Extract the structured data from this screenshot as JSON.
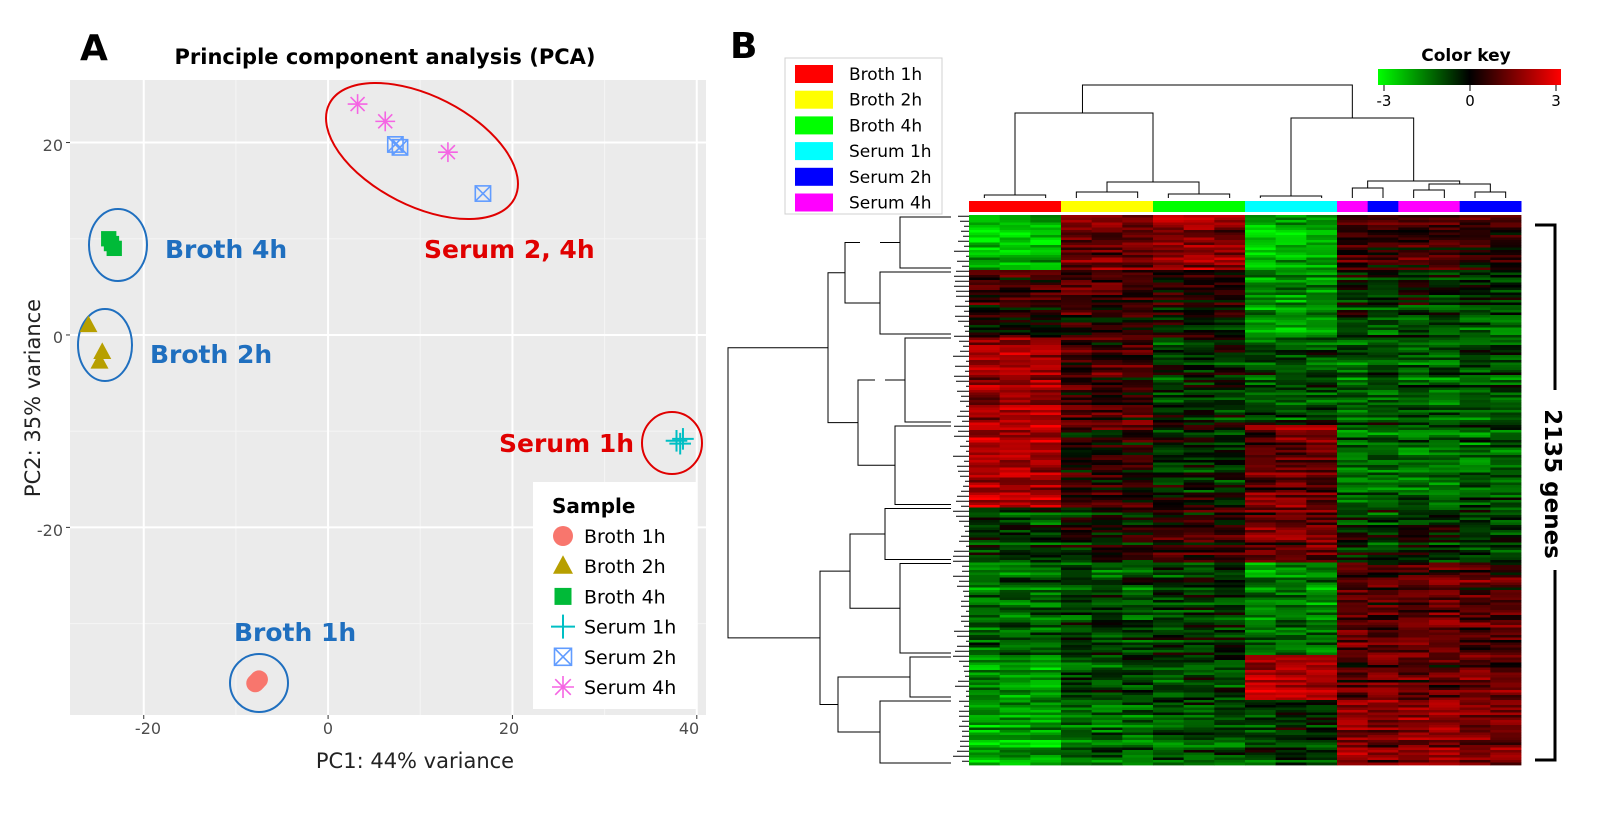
{
  "panel_a": {
    "letter": "A",
    "title": "Principle component analysis (PCA)",
    "xlabel": "PC1: 44% variance",
    "ylabel": "PC2: 35% variance",
    "x_ticks": [
      "-20",
      "0",
      "20",
      "40"
    ],
    "y_ticks": [
      "20",
      "0",
      "-20"
    ],
    "legend_title": "Sample",
    "annotations": {
      "broth4h": "Broth 4h",
      "broth2h": "Broth 2h",
      "broth1h": "Broth 1h",
      "serum1h": "Serum 1h",
      "serum24h": "Serum 2, 4h"
    }
  },
  "panel_b": {
    "letter": "B",
    "legend": [
      "Broth 1h",
      "Broth 2h",
      "Broth 4h",
      "Serum 1h",
      "Serum 2h",
      "Serum 4h"
    ],
    "color_key_title": "Color key",
    "color_key_ticks": [
      "-3",
      "0",
      "3"
    ],
    "gene_count_label": "2135 genes"
  },
  "colors": {
    "broth_1h": "#f8766d",
    "broth_2h": "#b79f00",
    "broth_4h": "#00ba38",
    "serum_1h": "#00bfc4",
    "serum_2h": "#619cff",
    "serum_4h": "#f564e3",
    "annot_blue": "#1f6fbf",
    "annot_red": "#e00000",
    "heat_low": "#00ff00",
    "heat_mid": "#000000",
    "heat_high": "#ff0000"
  },
  "chart_data": [
    {
      "type": "scatter",
      "title": "Principle component analysis (PCA)",
      "xlabel": "PC1: 44% variance",
      "ylabel": "PC2: 35% variance",
      "xlim": [
        -28,
        41
      ],
      "ylim": [
        -39.5,
        26.5
      ],
      "grid": true,
      "legend_placement": "bottom-right",
      "series": [
        {
          "name": "Broth 1h",
          "marker": "circle",
          "color": "#f8766d",
          "points": [
            [
              -7.7,
              -36.0
            ],
            [
              -7.5,
              -35.8
            ],
            [
              -7.9,
              -36.2
            ]
          ]
        },
        {
          "name": "Broth 2h",
          "marker": "triangle",
          "color": "#b79f00",
          "points": [
            [
              -26.0,
              1.0
            ],
            [
              -24.5,
              -1.8
            ],
            [
              -24.8,
              -2.8
            ]
          ]
        },
        {
          "name": "Broth 4h",
          "marker": "square",
          "color": "#00ba38",
          "points": [
            [
              -23.8,
              10.0
            ],
            [
              -23.2,
              9.0
            ],
            [
              -23.5,
              9.5
            ]
          ]
        },
        {
          "name": "Serum 1h",
          "marker": "plus",
          "color": "#00bfc4",
          "points": [
            [
              37.8,
              -11.0
            ],
            [
              38.5,
              -10.8
            ],
            [
              38.2,
              -11.3
            ]
          ]
        },
        {
          "name": "Serum 2h",
          "marker": "square-x",
          "color": "#619cff",
          "points": [
            [
              7.3,
              19.8
            ],
            [
              7.8,
              19.5
            ],
            [
              16.8,
              14.7
            ]
          ]
        },
        {
          "name": "Serum 4h",
          "marker": "asterisk",
          "color": "#f564e3",
          "points": [
            [
              3.2,
              24.0
            ],
            [
              6.2,
              22.2
            ],
            [
              13.0,
              19.0
            ]
          ]
        }
      ]
    },
    {
      "type": "heatmap",
      "color_scale": {
        "min": -3,
        "mid": 0,
        "max": 3,
        "low_color": "#00ff00",
        "mid_color": "#000000",
        "high_color": "#ff0000"
      },
      "genes": 2135,
      "column_groups": [
        {
          "name": "Broth 1h",
          "color": "#ff0000",
          "columns": 3
        },
        {
          "name": "Broth 2h",
          "color": "#ffff00",
          "columns": 3
        },
        {
          "name": "Broth 4h",
          "color": "#00ff00",
          "columns": 3
        },
        {
          "name": "Serum 1h",
          "color": "#00ffff",
          "columns": 3
        },
        {
          "name": "Serum 4h",
          "color": "#ff00ff",
          "columns": 1
        },
        {
          "name": "Serum 2h",
          "color": "#0000ff",
          "columns": 1
        },
        {
          "name": "Serum 4h",
          "color": "#ff00ff",
          "columns": 2
        },
        {
          "name": "Serum 2h",
          "color": "#0000ff",
          "columns": 2
        }
      ]
    }
  ]
}
